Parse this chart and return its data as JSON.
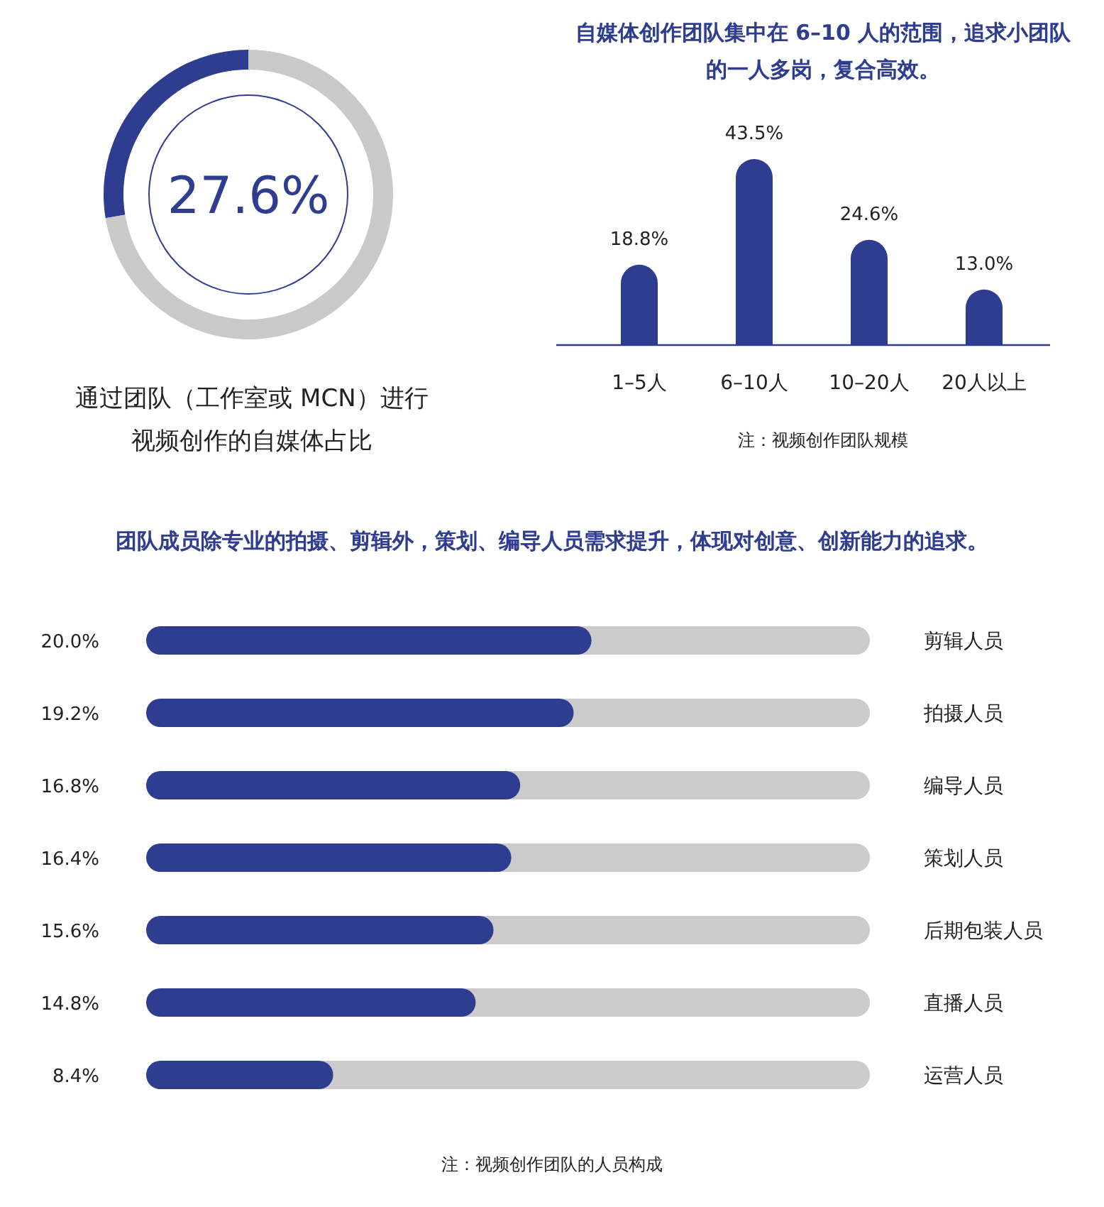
{
  "chart_data": [
    {
      "type": "donut",
      "title": "通过团队（工作室或 MCN）进行视频创作的自媒体占比",
      "categories": [
        null,
        null
      ],
      "values": [
        27.6,
        72.4
      ],
      "colors": [
        "#2f3d91",
        "#c9c9c9"
      ],
      "annotations": [
        "27.6%"
      ]
    },
    {
      "type": "bar",
      "title": "自媒体创作团队集中在 6–10 人的范围，追求小团队的一人多岗，复合高效。",
      "categories": [
        "1–5人",
        "6–10人",
        "10–20人",
        "20人以上"
      ],
      "values": [
        18.8,
        43.5,
        24.6,
        13.0
      ],
      "color": "#2f3d91",
      "value_labels": [
        "18.8%",
        "43.5%",
        "24.6%",
        "13.0%"
      ],
      "annotations": [
        "注：视频创作团队规模"
      ]
    },
    {
      "type": "bar",
      "orientation": "horizontal",
      "title": "团队成员除专业的拍摄、剪辑外，策划、编导人员需求提升，体现对创意、创新能力的追求。",
      "categories": [
        "剪辑人员",
        "拍摄人员",
        "编导人员",
        "策划人员",
        "后期包装人员",
        "直播人员",
        "运营人员"
      ],
      "values": [
        20.0,
        19.2,
        16.8,
        16.4,
        15.6,
        14.8,
        8.4
      ],
      "color": "#2f3d91",
      "xlim": [
        0,
        32.5
      ],
      "value_labels": [
        "20.0%",
        "19.2%",
        "16.8%",
        "16.4%",
        "15.6%",
        "14.8%",
        "8.4%"
      ],
      "annotations": [
        "注：视频创作团队的人员构成"
      ]
    }
  ]
}
